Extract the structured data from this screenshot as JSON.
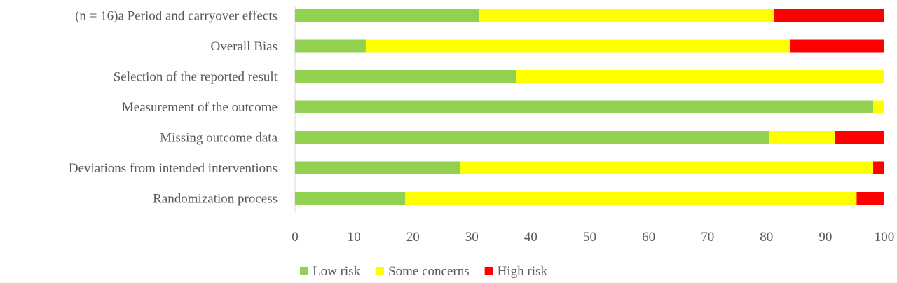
{
  "chart_data": {
    "type": "bar",
    "orientation": "horizontal",
    "stacked": true,
    "categories": [
      "(n = 16)a  Period and carryover effects",
      "Overall Bias",
      "Selection of the reported result",
      "Measurement of the outcome",
      "Missing outcome data",
      "Deviations from intended interventions",
      "Randomization process"
    ],
    "series": [
      {
        "name": "Low risk",
        "color": "#92d050",
        "values": [
          31.25,
          12.0,
          37.5,
          98.1,
          80.4,
          28.0,
          18.7
        ]
      },
      {
        "name": "Some concerns",
        "color": "#ffff00",
        "values": [
          50.0,
          72.0,
          62.5,
          1.9,
          11.2,
          70.1,
          76.6
        ]
      },
      {
        "name": "High risk",
        "color": "#ff0000",
        "values": [
          18.75,
          16.0,
          0.0,
          0.0,
          8.4,
          1.9,
          4.7
        ]
      }
    ],
    "xlim": [
      0,
      100
    ],
    "xticks": [
      "0",
      "10",
      "20",
      "30",
      "40",
      "50",
      "60",
      "70",
      "80",
      "90",
      "100"
    ],
    "grid": false,
    "legend_position": "bottom"
  }
}
